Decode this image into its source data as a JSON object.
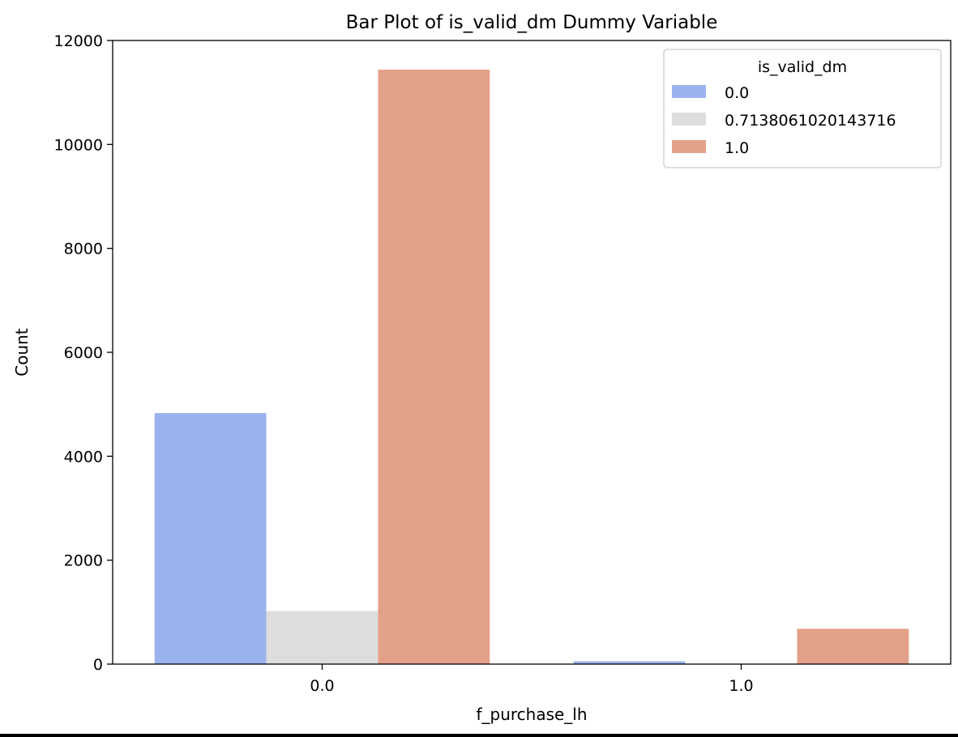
{
  "chart_data": {
    "type": "bar",
    "title": "Bar Plot of is_valid_dm Dummy Variable",
    "xlabel": "f_purchase_lh",
    "ylabel": "Count",
    "categories": [
      "0.0",
      "1.0"
    ],
    "ylim": [
      0,
      12000
    ],
    "yticks": [
      0,
      2000,
      4000,
      6000,
      8000,
      10000,
      12000
    ],
    "grid": false,
    "legend": {
      "title": "is_valid_dm",
      "position": "top-right"
    },
    "series": [
      {
        "name": "0.0",
        "color": "#9bb3ed",
        "values": [
          4830,
          55
        ]
      },
      {
        "name": "0.7138061020143716",
        "color": "#dddddd",
        "values": [
          1020,
          10
        ]
      },
      {
        "name": "1.0",
        "color": "#e4a189",
        "values": [
          11440,
          680
        ]
      }
    ]
  }
}
